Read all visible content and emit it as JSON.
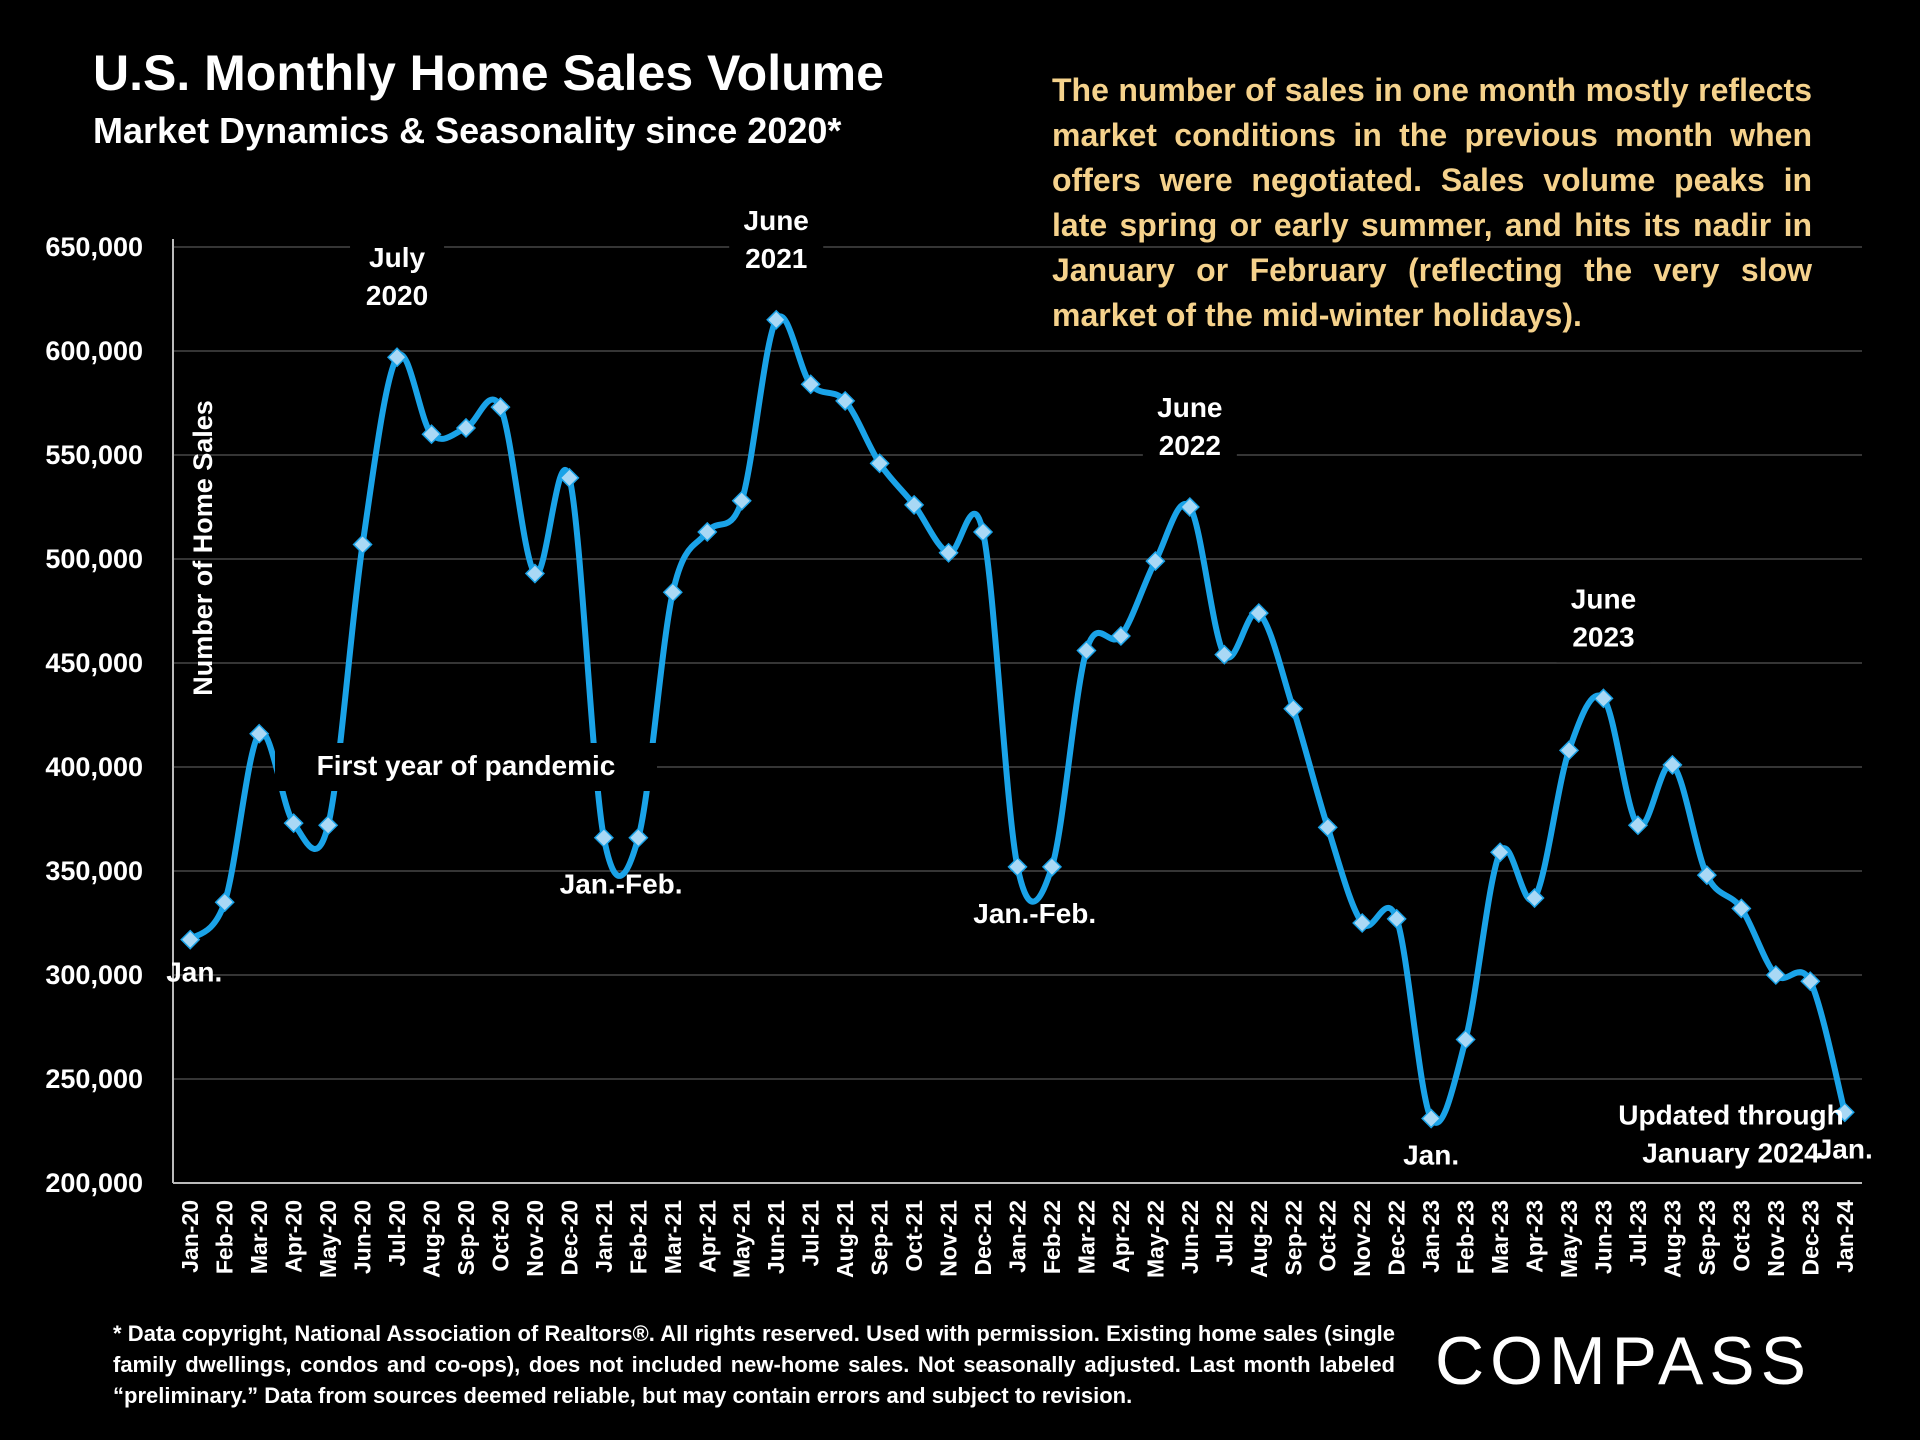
{
  "title": "U.S. Monthly Home Sales Volume",
  "subtitle": "Market Dynamics & Seasonality since 2020*",
  "note": "The number of sales in one month mostly reflects market conditions in the previous month when offers were negotiated. Sales volume peaks in late spring or early summer, and hits its nadir in January or February (reflecting the very slow market of the mid-winter holidays).",
  "footnote": "* Data copyright, National Association of Realtors®. All rights reserved. Used with permission. Existing home sales (single family dwellings, condos and co-ops), does not included new-home sales. Not seasonally adjusted. Last month labeled “preliminary.” Data from sources deemed reliable, but may contain errors and subject to revision.",
  "logo_text": "COMPASS",
  "colors": {
    "background": "#000000",
    "line": "#1aa3e8",
    "marker": "#a9d8f5",
    "note_text": "#f5d28c",
    "grid": "#555555"
  },
  "chart_data": {
    "type": "line",
    "title": "U.S. Monthly Home Sales Volume",
    "subtitle": "Market Dynamics & Seasonality since 2020*",
    "ylabel": "Number of Home Sales",
    "ylim": [
      200000,
      650000
    ],
    "yticks": [
      200000,
      250000,
      300000,
      350000,
      400000,
      450000,
      500000,
      550000,
      600000,
      650000
    ],
    "ytick_labels": [
      "200,000",
      "250,000",
      "300,000",
      "350,000",
      "400,000",
      "450,000",
      "500,000",
      "550,000",
      "600,000",
      "650,000"
    ],
    "grid": true,
    "categories": [
      "Jan-20",
      "Feb-20",
      "Mar-20",
      "Apr-20",
      "May-20",
      "Jun-20",
      "Jul-20",
      "Aug-20",
      "Sep-20",
      "Oct-20",
      "Nov-20",
      "Dec-20",
      "Jan-21",
      "Feb-21",
      "Mar-21",
      "Apr-21",
      "May-21",
      "Jun-21",
      "Jul-21",
      "Aug-21",
      "Sep-21",
      "Oct-21",
      "Nov-21",
      "Dec-21",
      "Jan-22",
      "Feb-22",
      "Mar-22",
      "Apr-22",
      "May-22",
      "Jun-22",
      "Jul-22",
      "Aug-22",
      "Sep-22",
      "Oct-22",
      "Nov-22",
      "Dec-22",
      "Jan-23",
      "Feb-23",
      "Mar-23",
      "Apr-23",
      "May-23",
      "Jun-23",
      "Jul-23",
      "Aug-23",
      "Sep-23",
      "Oct-23",
      "Nov-23",
      "Dec-23",
      "Jan-24"
    ],
    "values": [
      317000,
      335000,
      416000,
      373000,
      372000,
      507000,
      597000,
      560000,
      563000,
      573000,
      493000,
      539000,
      366000,
      366000,
      484000,
      513000,
      528000,
      615000,
      584000,
      576000,
      546000,
      526000,
      503000,
      513000,
      352000,
      352000,
      456000,
      463000,
      499000,
      525000,
      454000,
      474000,
      428000,
      371000,
      325000,
      327000,
      231000,
      269000,
      359000,
      337000,
      408000,
      433000,
      372000,
      401000,
      348000,
      332000,
      300000,
      297000,
      234000
    ],
    "annotations": [
      {
        "text": "Jan.",
        "index": 0
      },
      {
        "text": "July\n2020",
        "index": 6
      },
      {
        "text": "First year of pandemic",
        "index": 8
      },
      {
        "text": "Jan.-Feb.",
        "index": 12.5
      },
      {
        "text": "June\n2021",
        "index": 17
      },
      {
        "text": "Jan.-Feb.",
        "index": 24.5
      },
      {
        "text": "June\n2022",
        "index": 29
      },
      {
        "text": "Jan.",
        "index": 36
      },
      {
        "text": "June\n2023",
        "index": 41
      },
      {
        "text": "Updated through\nJanuary 2024",
        "index": 44.7
      },
      {
        "text": "Jan.",
        "index": 48
      }
    ]
  }
}
